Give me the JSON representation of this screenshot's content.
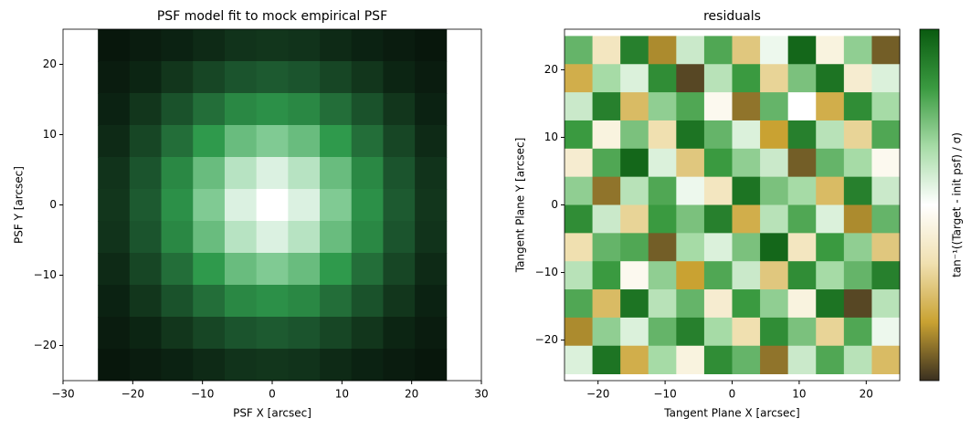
{
  "chart_data": [
    {
      "type": "heatmap",
      "title": "PSF model fit to mock empirical PSF",
      "xlabel": "PSF X [arcsec]",
      "ylabel": "PSF Y [arcsec]",
      "xlim": [
        -30,
        30
      ],
      "ylim": [
        -25,
        25
      ],
      "extent": [
        -25,
        25,
        -25,
        25
      ],
      "xticks": [
        {
          "value": -30,
          "label": "−30"
        },
        {
          "value": -20,
          "label": "−20"
        },
        {
          "value": -10,
          "label": "−10"
        },
        0,
        10,
        20,
        30
      ],
      "yticks": [
        {
          "value": -20,
          "label": "−20"
        },
        {
          "value": -10,
          "label": "−10"
        },
        0,
        10,
        20
      ],
      "clim": [
        0,
        1
      ],
      "colormap": [
        "#07140a",
        "#1d5a30",
        "#2f9a4c",
        "#8fd3a0",
        "#ffffff"
      ],
      "z": [
        [
          0.01,
          0.03,
          0.05,
          0.08,
          0.11,
          0.12,
          0.11,
          0.08,
          0.05,
          0.03,
          0.01
        ],
        [
          0.03,
          0.06,
          0.12,
          0.18,
          0.23,
          0.25,
          0.23,
          0.18,
          0.12,
          0.06,
          0.03
        ],
        [
          0.05,
          0.12,
          0.22,
          0.33,
          0.43,
          0.46,
          0.43,
          0.33,
          0.22,
          0.12,
          0.05
        ],
        [
          0.08,
          0.18,
          0.33,
          0.5,
          0.65,
          0.71,
          0.65,
          0.5,
          0.33,
          0.18,
          0.08
        ],
        [
          0.11,
          0.23,
          0.43,
          0.65,
          0.84,
          0.92,
          0.84,
          0.65,
          0.43,
          0.23,
          0.11
        ],
        [
          0.12,
          0.25,
          0.46,
          0.71,
          0.92,
          1.0,
          0.92,
          0.71,
          0.46,
          0.25,
          0.12
        ],
        [
          0.11,
          0.23,
          0.43,
          0.65,
          0.84,
          0.92,
          0.84,
          0.65,
          0.43,
          0.23,
          0.11
        ],
        [
          0.08,
          0.18,
          0.33,
          0.5,
          0.65,
          0.71,
          0.65,
          0.5,
          0.33,
          0.18,
          0.08
        ],
        [
          0.05,
          0.12,
          0.22,
          0.33,
          0.43,
          0.46,
          0.43,
          0.33,
          0.22,
          0.12,
          0.05
        ],
        [
          0.03,
          0.06,
          0.12,
          0.18,
          0.23,
          0.25,
          0.23,
          0.18,
          0.12,
          0.06,
          0.03
        ],
        [
          0.01,
          0.03,
          0.05,
          0.08,
          0.11,
          0.12,
          0.11,
          0.08,
          0.05,
          0.03,
          0.01
        ]
      ]
    },
    {
      "type": "heatmap",
      "title": "residuals",
      "xlabel": "Tangent Plane X [arcsec]",
      "ylabel": "Tangent Plane Y [arcsec]",
      "xlim": [
        -25,
        25
      ],
      "ylim": [
        -26,
        26
      ],
      "extent": [
        -25,
        25,
        -25,
        25
      ],
      "xticks": [
        {
          "value": -20,
          "label": "−20"
        },
        {
          "value": -10,
          "label": "−10"
        },
        0,
        10,
        20
      ],
      "yticks": [
        {
          "value": -20,
          "label": "−20"
        },
        {
          "value": -10,
          "label": "−10"
        },
        0,
        10,
        20
      ],
      "clim": [
        -1.5,
        1.5
      ],
      "colormap": [
        "#3a3020",
        "#c9a232",
        "#f0e0b0",
        "#ffffff",
        "#a6dba6",
        "#3a9a40",
        "#0a5a10"
      ],
      "colorbar_label": "tan⁻¹((Target - init psf) / σ)",
      "z": [
        [
          0.8,
          -0.4,
          1.2,
          -1.1,
          0.3,
          0.9,
          -0.7,
          0.1,
          1.4,
          -0.2,
          0.6,
          -1.3
        ],
        [
          -0.9,
          0.5,
          0.2,
          1.1,
          -1.4,
          0.4,
          1.0,
          -0.6,
          0.7,
          1.3,
          -0.3,
          0.2
        ],
        [
          0.3,
          1.2,
          -0.8,
          0.6,
          0.9,
          -0.1,
          -1.2,
          0.8,
          0.0,
          -0.9,
          1.1,
          0.5
        ],
        [
          1.0,
          -0.2,
          0.7,
          -0.5,
          1.3,
          0.8,
          0.2,
          -1.0,
          1.2,
          0.4,
          -0.6,
          0.9
        ],
        [
          -0.3,
          0.9,
          1.4,
          0.2,
          -0.7,
          1.0,
          0.6,
          0.3,
          -1.3,
          0.8,
          0.5,
          -0.1
        ],
        [
          0.6,
          -1.2,
          0.4,
          0.9,
          0.1,
          -0.4,
          1.3,
          0.7,
          0.5,
          -0.8,
          1.2,
          0.3
        ],
        [
          1.1,
          0.3,
          -0.6,
          1.0,
          0.7,
          1.2,
          -0.9,
          0.4,
          0.9,
          0.2,
          -1.1,
          0.8
        ],
        [
          -0.5,
          0.8,
          0.9,
          -1.3,
          0.5,
          0.2,
          0.7,
          1.4,
          -0.4,
          1.0,
          0.6,
          -0.7
        ],
        [
          0.4,
          1.0,
          -0.1,
          0.6,
          -1.0,
          0.9,
          0.3,
          -0.7,
          1.1,
          0.5,
          0.8,
          1.2
        ],
        [
          0.9,
          -0.8,
          1.3,
          0.4,
          0.8,
          -0.3,
          1.0,
          0.6,
          -0.2,
          1.3,
          -1.4,
          0.4
        ],
        [
          -1.1,
          0.6,
          0.2,
          0.8,
          1.2,
          0.5,
          -0.5,
          1.1,
          0.7,
          -0.6,
          0.9,
          0.1
        ],
        [
          0.2,
          1.3,
          -0.9,
          0.5,
          -0.2,
          1.1,
          0.8,
          -1.2,
          0.3,
          0.9,
          0.4,
          -0.8
        ]
      ]
    }
  ]
}
